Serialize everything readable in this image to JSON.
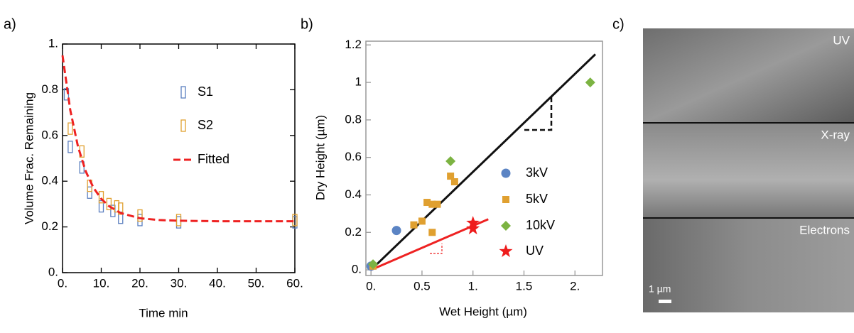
{
  "chart_data": [
    {
      "type": "scatter",
      "panel_label": "a)",
      "xlabel": "Time min",
      "ylabel": "Volume Frac. Remaining",
      "xlim": [
        0,
        60
      ],
      "ylim": [
        0,
        1
      ],
      "xticks": [
        {
          "value": 0,
          "label": "0."
        },
        {
          "value": 10,
          "label": "10."
        },
        {
          "value": 20,
          "label": "20."
        },
        {
          "value": 30,
          "label": "30."
        },
        {
          "value": 40,
          "label": "40."
        },
        {
          "value": 50,
          "label": "50."
        },
        {
          "value": 60,
          "label": "60."
        }
      ],
      "yticks": [
        {
          "value": 0,
          "label": "0."
        },
        0.2,
        0.4,
        0.6,
        0.8,
        {
          "value": 1,
          "label": "1."
        }
      ],
      "series": [
        {
          "name": "S1",
          "color": "#5b7fbf",
          "marker": "open-rect",
          "x": [
            1,
            2,
            5,
            7,
            10,
            13,
            15,
            20,
            30,
            60
          ],
          "values": [
            0.78,
            0.55,
            0.46,
            0.35,
            0.29,
            0.27,
            0.24,
            0.23,
            0.22,
            0.22
          ]
        },
        {
          "name": "S2",
          "color": "#e0a030",
          "marker": "open-rect",
          "x": [
            2,
            5,
            7,
            10,
            12,
            14,
            15,
            20,
            30,
            60
          ],
          "values": [
            0.63,
            0.53,
            0.38,
            0.33,
            0.3,
            0.29,
            0.28,
            0.25,
            0.23,
            0.23
          ]
        },
        {
          "name": "Fitted",
          "color": "#ee2222",
          "marker": "dashed-line",
          "x": [
            0,
            2,
            4,
            6,
            8,
            10,
            12,
            15,
            20,
            25,
            30,
            40,
            50,
            60
          ],
          "values": [
            0.95,
            0.711,
            0.551,
            0.443,
            0.371,
            0.323,
            0.291,
            0.261,
            0.238,
            0.23,
            0.227,
            0.225,
            0.225,
            0.225
          ]
        }
      ]
    },
    {
      "type": "scatter",
      "panel_label": "b)",
      "xlabel": "Wet Height (µm)",
      "ylabel": "Dry Height (µm)",
      "xlim": [
        -0.05,
        2.27
      ],
      "ylim": [
        -0.03,
        1.22
      ],
      "xticks": [
        {
          "value": 0,
          "label": "0."
        },
        0.5,
        {
          "value": 1,
          "label": "1."
        },
        1.5,
        {
          "value": 2,
          "label": "2."
        }
      ],
      "yticks": [
        {
          "value": 0,
          "label": "0."
        },
        0.2,
        0.4,
        0.6,
        0.8,
        {
          "value": 1,
          "label": "1"
        },
        1.2
      ],
      "fit_lines": [
        {
          "color": "#111111",
          "x": [
            0,
            2.2
          ],
          "values": [
            0,
            1.15
          ]
        },
        {
          "color": "#ee2222",
          "x": [
            0,
            1.15
          ],
          "values": [
            0,
            0.27
          ]
        }
      ],
      "series": [
        {
          "name": "3kV",
          "color": "#5b84c4",
          "marker": "circle",
          "x": [
            0.0,
            0.25
          ],
          "values": [
            0.02,
            0.21
          ]
        },
        {
          "name": "5kV",
          "color": "#e0a030",
          "marker": "square",
          "x": [
            0.02,
            0.42,
            0.5,
            0.55,
            0.6,
            0.6,
            0.65,
            0.78,
            0.82
          ],
          "values": [
            0.02,
            0.24,
            0.26,
            0.36,
            0.2,
            0.35,
            0.35,
            0.5,
            0.47
          ]
        },
        {
          "name": "10kV",
          "color": "#7cb342",
          "marker": "diamond",
          "x": [
            0.02,
            0.78,
            2.15
          ],
          "values": [
            0.03,
            0.58,
            1.0
          ]
        },
        {
          "name": "UV",
          "color": "#ee1c1c",
          "marker": "star",
          "x": [
            1.0,
            1.0
          ],
          "values": [
            0.22,
            0.25
          ]
        }
      ]
    }
  ],
  "micrograph": {
    "panel_label": "c)",
    "panels": [
      "UV",
      "X-ray",
      "Electrons"
    ],
    "scale_bar": "1 µm"
  }
}
